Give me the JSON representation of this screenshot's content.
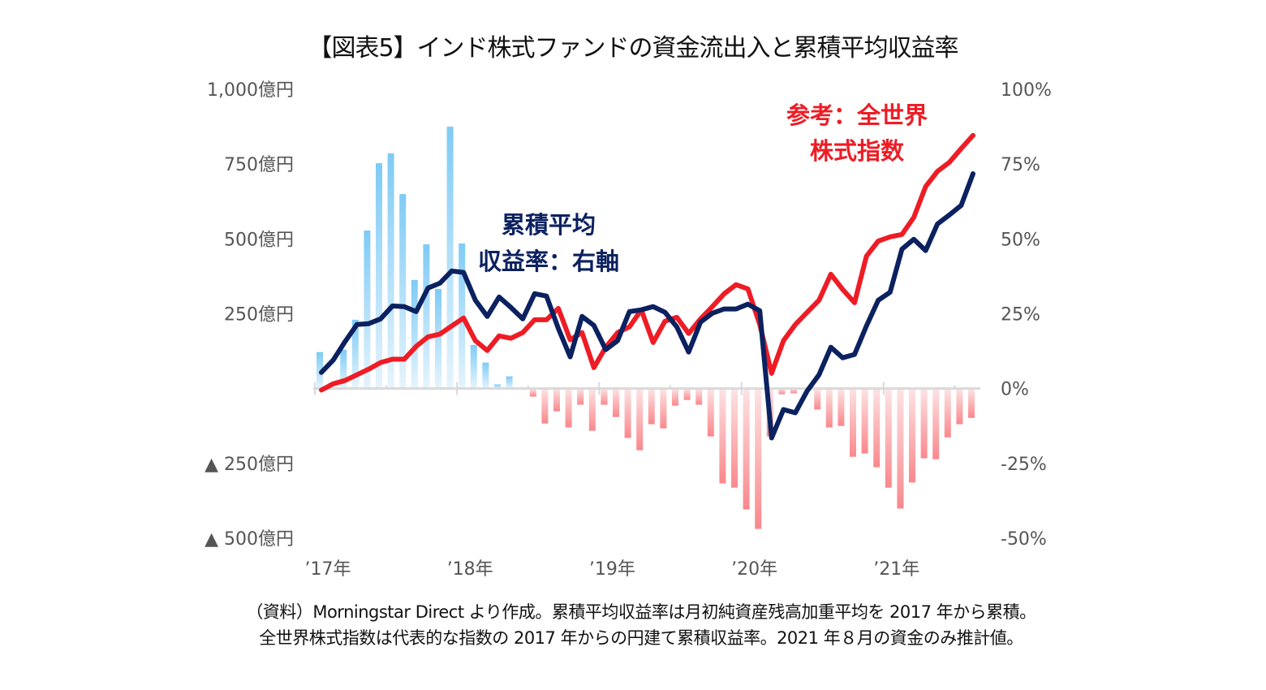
{
  "chart_data": {
    "type": "bar+line",
    "title": "【図表5】インド株式ファンドの資金流出入と累積平均収益率",
    "x": [
      "2017-01",
      "2017-02",
      "2017-03",
      "2017-04",
      "2017-05",
      "2017-06",
      "2017-07",
      "2017-08",
      "2017-09",
      "2017-10",
      "2017-11",
      "2017-12",
      "2018-01",
      "2018-02",
      "2018-03",
      "2018-04",
      "2018-05",
      "2018-06",
      "2018-07",
      "2018-08",
      "2018-09",
      "2018-10",
      "2018-11",
      "2018-12",
      "2019-01",
      "2019-02",
      "2019-03",
      "2019-04",
      "2019-05",
      "2019-06",
      "2019-07",
      "2019-08",
      "2019-09",
      "2019-10",
      "2019-11",
      "2019-12",
      "2020-01",
      "2020-02",
      "2020-03",
      "2020-04",
      "2020-05",
      "2020-06",
      "2020-07",
      "2020-08",
      "2020-09",
      "2020-10",
      "2020-11",
      "2020-12",
      "2021-01",
      "2021-02",
      "2021-03",
      "2021-04",
      "2021-05",
      "2021-06",
      "2021-07",
      "2021-08"
    ],
    "x_tick_labels": [
      "’17年",
      "’18年",
      "’19年",
      "’20年",
      "’21年"
    ],
    "left_axis": {
      "unit": "億円",
      "ylim": [
        -500,
        1000
      ],
      "ticks": [
        1000,
        750,
        500,
        250,
        0,
        -250,
        -500
      ],
      "tick_labels": [
        "1,000億円",
        "750億円",
        "500億円",
        "250億円",
        "",
        "▲ 250億円",
        "▲ 500億円"
      ]
    },
    "right_axis": {
      "unit": "%",
      "ylim": [
        -50,
        100
      ],
      "ticks": [
        100,
        75,
        50,
        25,
        0,
        -25,
        -50
      ],
      "tick_labels": [
        "100%",
        "75%",
        "50%",
        "25%",
        "0%",
        "-25%",
        "-50%"
      ]
    },
    "bars": {
      "name": "資金流出入（億円）",
      "axis": "left",
      "positive_color": "#7ecbf5",
      "negative_color": "#f9888c",
      "values": [
        122,
        -3,
        130,
        230,
        528,
        753,
        786,
        650,
        363,
        482,
        333,
        875,
        485,
        146,
        87,
        14,
        41,
        3,
        -27,
        -117,
        -76,
        -130,
        -54,
        -141,
        -54,
        -95,
        -165,
        -206,
        -119,
        -133,
        -57,
        -38,
        -54,
        -160,
        -317,
        -331,
        -404,
        -469,
        -160,
        -19,
        -16,
        0,
        -70,
        -130,
        -125,
        -228,
        -217,
        -263,
        -331,
        -401,
        -314,
        -233,
        -236,
        -163,
        -119,
        -98
      ]
    },
    "series": [
      {
        "name": "累積平均収益率：右軸",
        "axis": "right",
        "color": "#0b2160",
        "values": [
          5.4,
          9.5,
          15.7,
          21.4,
          21.7,
          23.3,
          27.6,
          27.4,
          25.7,
          33.6,
          35.2,
          39.3,
          38.8,
          29.5,
          24.1,
          30.6,
          27.1,
          23.3,
          31.7,
          30.9,
          20.1,
          10.6,
          24.1,
          21.1,
          13.0,
          16.0,
          25.7,
          26.3,
          27.4,
          25.5,
          20.6,
          12.2,
          22.2,
          25.2,
          26.6,
          26.6,
          28.2,
          26.0,
          -16.5,
          -7.0,
          -8.1,
          -0.8,
          4.6,
          13.8,
          10.3,
          11.4,
          20.9,
          29.5,
          32.2,
          46.6,
          49.9,
          46.1,
          55.0,
          58.0,
          61.2,
          71.8
        ]
      },
      {
        "name": "参考：全世界株式指数",
        "axis": "right",
        "color": "#ee1c25",
        "values": [
          -0.5,
          1.6,
          2.7,
          4.6,
          6.5,
          8.7,
          9.8,
          9.8,
          14.1,
          17.3,
          18.2,
          20.9,
          23.6,
          16.0,
          12.7,
          17.6,
          16.8,
          18.7,
          23.0,
          23.0,
          26.8,
          16.3,
          18.7,
          7.0,
          13.8,
          18.7,
          20.6,
          26.3,
          15.4,
          22.5,
          23.8,
          18.4,
          23.3,
          27.4,
          31.7,
          34.7,
          33.3,
          21.4,
          5.1,
          16.0,
          21.4,
          25.5,
          29.5,
          38.2,
          33.1,
          28.7,
          44.2,
          49.3,
          50.7,
          51.5,
          57.2,
          67.5,
          72.6,
          75.6,
          80.2,
          84.6
        ]
      }
    ],
    "annotations": {
      "navy_line1": "累積平均",
      "navy_line2": "収益率：右軸",
      "red_line1": "参考：全世界",
      "red_line2": "株式指数"
    },
    "grid": false,
    "legend": "none (inline annotations)"
  },
  "footnote": {
    "line1": "（資料）Morningstar Direct より作成。累積平均収益率は月初純資産残高加重平均を 2017 年から累積。",
    "line2": "全世界株式指数は代表的な指数の 2017 年からの円建て累積収益率。2021 年８月の資金のみ推計値。"
  }
}
